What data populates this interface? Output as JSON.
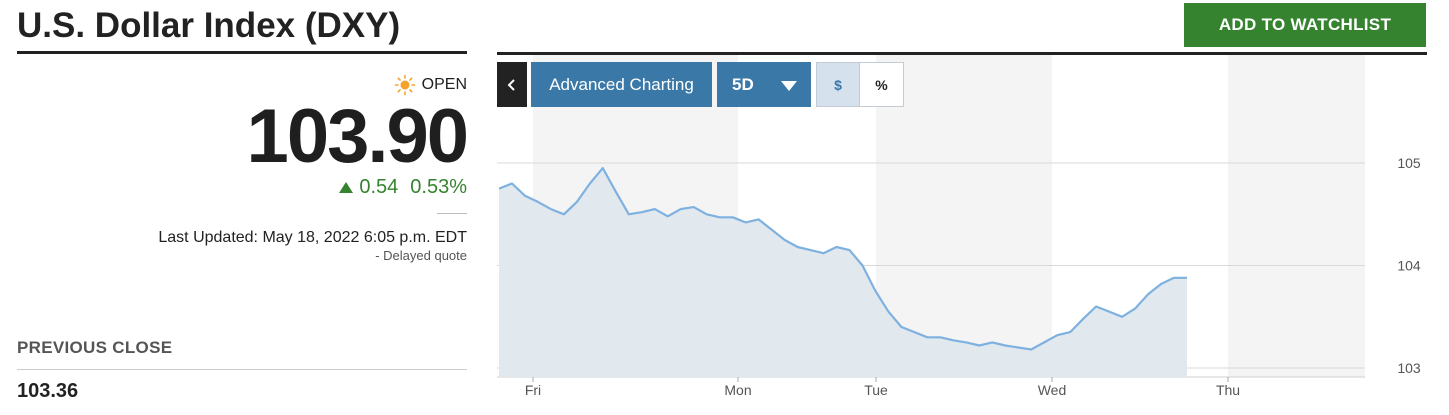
{
  "header": {
    "title": "U.S. Dollar Index (DXY)",
    "watchlist_label": "ADD TO WATCHLIST"
  },
  "quote": {
    "status": "OPEN",
    "status_icon": "sun-icon",
    "price": "103.90",
    "change": "0.54",
    "change_percent": "0.53%",
    "last_updated": "Last Updated: May 18, 2022 6:05 p.m. EDT",
    "delayed": "-  Delayed quote",
    "previous_close_label": "PREVIOUS CLOSE",
    "previous_close": "103.36"
  },
  "chart_controls": {
    "back_icon": "chevron-left-icon",
    "advanced_label": "Advanced Charting",
    "range_label": "5D",
    "dollar_label": "$",
    "percent_label": "%"
  },
  "colors": {
    "accent_green": "#35832f",
    "button_blue": "#3a78a8",
    "line_blue": "#7fb1e0",
    "area_fill": "#dfe8ee"
  },
  "chart_data": {
    "type": "area",
    "x_ticks": [
      "Fri",
      "Mon",
      "Tue",
      "Wed",
      "Thu"
    ],
    "y_ticks": [
      105,
      104,
      103
    ],
    "ylim": [
      102.9,
      105.4
    ],
    "grid": true,
    "series": [
      {
        "values": [
          104.75,
          104.8,
          104.68,
          104.62,
          104.55,
          104.5,
          104.62,
          104.8,
          104.95,
          104.72,
          104.5,
          104.52,
          104.55,
          104.48,
          104.55,
          104.57,
          104.5,
          104.47,
          104.47,
          104.42,
          104.45,
          104.35,
          104.25,
          104.18,
          104.15,
          104.12,
          104.18,
          104.15,
          104.0,
          103.75,
          103.55,
          103.4,
          103.35,
          103.3,
          103.3,
          103.27,
          103.25,
          103.22,
          103.25,
          103.22,
          103.2,
          103.18,
          103.25,
          103.32,
          103.35,
          103.48,
          103.6,
          103.55,
          103.5,
          103.58,
          103.72,
          103.82,
          103.88,
          103.88
        ]
      }
    ]
  }
}
